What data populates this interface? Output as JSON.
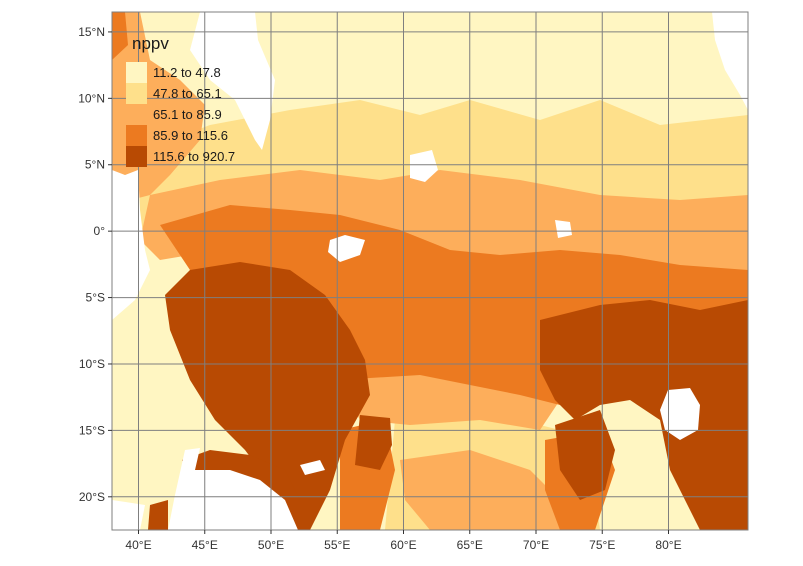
{
  "map": {
    "variable": "nppv",
    "x_range": [
      38,
      86
    ],
    "y_range": [
      -22.5,
      16.5
    ],
    "x_ticks": [
      {
        "value": 40,
        "label": "40°E"
      },
      {
        "value": 45,
        "label": "45°E"
      },
      {
        "value": 50,
        "label": "50°E"
      },
      {
        "value": 55,
        "label": "55°E"
      },
      {
        "value": 60,
        "label": "60°E"
      },
      {
        "value": 65,
        "label": "65°E"
      },
      {
        "value": 70,
        "label": "70°E"
      },
      {
        "value": 75,
        "label": "75°E"
      },
      {
        "value": 80,
        "label": "80°E"
      }
    ],
    "y_ticks": [
      {
        "value": 15,
        "label": "15°N"
      },
      {
        "value": 10,
        "label": "10°N"
      },
      {
        "value": 5,
        "label": "5°N"
      },
      {
        "value": 0,
        "label": "0°"
      },
      {
        "value": -5,
        "label": "5°S"
      },
      {
        "value": -10,
        "label": "10°S"
      },
      {
        "value": -15,
        "label": "15°S"
      },
      {
        "value": -20,
        "label": "20°S"
      }
    ],
    "grid_color": "#7f7f7f",
    "land_color": "#ffffff"
  },
  "legend": {
    "title": "nppv",
    "position": "top-left",
    "classes": [
      {
        "label": "11.2 to 47.8",
        "color": "#fff6c2"
      },
      {
        "label": "47.8 to 65.1",
        "color": "#fee08b"
      },
      {
        "label": "65.1 to 85.9",
        "color": "#fdae5b"
      },
      {
        "label": "85.9 to 115.6",
        "color": "#ec7a20"
      },
      {
        "label": "115.6 to 920.7",
        "color": "#b84a03"
      }
    ]
  }
}
